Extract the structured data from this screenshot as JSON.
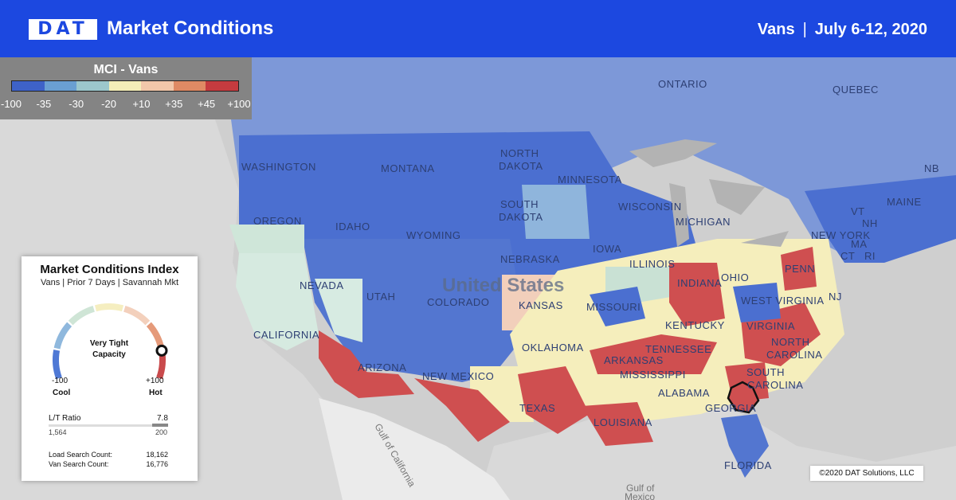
{
  "header": {
    "logo": "DAT",
    "title": "Market Conditions",
    "equipment": "Vans",
    "separator": "|",
    "date_range": "July 6-12, 2020"
  },
  "legend": {
    "title": "MCI - Vans",
    "colors": [
      "#3e62c8",
      "#6a9fd2",
      "#9cc7cc",
      "#f4eeb8",
      "#f2c7aa",
      "#df8a64",
      "#c53b3f"
    ],
    "ticks": [
      "-100",
      "-35",
      "-30",
      "-20",
      "+10",
      "+35",
      "+45",
      "+100"
    ]
  },
  "map_labels": {
    "ontario": "ONTARIO",
    "quebec": "QUEBEC",
    "washington": "WASHINGTON",
    "montana": "MONTANA",
    "north_dakota_1": "NORTH",
    "north_dakota_2": "DAKOTA",
    "minnesota": "MINNESOTA",
    "wisconsin": "WISCONSIN",
    "michigan": "MICHIGAN",
    "maine": "MAINE",
    "nb": "NB",
    "oregon": "OREGON",
    "idaho": "IDAHO",
    "south_dakota_1": "SOUTH",
    "south_dakota_2": "DAKOTA",
    "wyoming": "WYOMING",
    "new_york": "NEW YORK",
    "vt": "VT",
    "nh": "NH",
    "ma": "MA",
    "ct": "CT",
    "ri": "RI",
    "iowa": "IOWA",
    "nebraska": "NEBRASKA",
    "penn": "PENN",
    "nevada": "NEVADA",
    "utah": "UTAH",
    "united_states": "United States",
    "illinois": "ILLINOIS",
    "indiana": "INDIANA",
    "ohio": "OHIO",
    "nj": "NJ",
    "colorado": "COLORADO",
    "kansas": "KANSAS",
    "missouri": "MISSOURI",
    "west_virginia": "WEST VIRGINIA",
    "kentucky": "KENTUCKY",
    "virginia": "VIRGINIA",
    "california": "CALIFORNIA",
    "oklahoma": "OKLAHOMA",
    "tennessee": "TENNESSEE",
    "north_carolina_1": "NORTH",
    "north_carolina_2": "CAROLINA",
    "arizona": "ARIZONA",
    "new_mexico": "NEW MEXICO",
    "arkansas": "ARKANSAS",
    "south_carolina_1": "SOUTH",
    "south_carolina_2": "CAROLINA",
    "mississippi": "MISSISSIPPI",
    "alabama": "ALABAMA",
    "georgia": "GEORGIA",
    "texas": "TEXAS",
    "louisiana": "LOUISIANA",
    "florida": "FLORIDA",
    "gulf_of_california": "Gulf of California",
    "gulf_of_mexico_1": "Gulf of",
    "gulf_of_mexico_2": "Mexico"
  },
  "card": {
    "title": "Market Conditions Index",
    "subtitle": "Vans | Prior 7 Days | Savannah Mkt",
    "gauge_center_1": "Very Tight",
    "gauge_center_2": "Capacity",
    "gauge_value": 1.0,
    "min_value": "-100",
    "min_label": "Cool",
    "max_value": "+100",
    "max_label": "Hot",
    "ratio_label": "L/T Ratio",
    "ratio_value": "7.8",
    "loads": "1,564",
    "trucks": "200",
    "load_search_label": "Load Search Count:",
    "load_search_value": "18,162",
    "van_search_label": "Van Search Count:",
    "van_search_value": "16,776"
  },
  "copyright": "©2020 DAT Solutions, LLC"
}
